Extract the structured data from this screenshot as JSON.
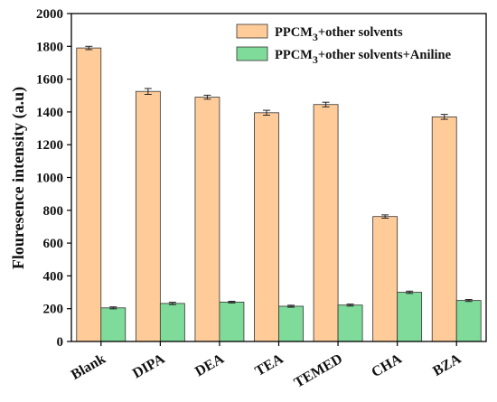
{
  "chart_data": {
    "type": "bar",
    "categories": [
      "Blank",
      "DIPA",
      "DEA",
      "TEA",
      "TEMED",
      "CHA",
      "BZA"
    ],
    "series": [
      {
        "name": "PPCM3+other solvents",
        "name_parts": {
          "pre": "PPCM",
          "sub": "3",
          "post": "+other solvents"
        },
        "color": "#FFCC99",
        "values": [
          1790,
          1525,
          1490,
          1395,
          1445,
          762,
          1370
        ],
        "errors": [
          10,
          18,
          12,
          15,
          14,
          10,
          15
        ]
      },
      {
        "name": "PPCM3+other solvents+Aniline",
        "name_parts": {
          "pre": "PPCM",
          "sub": "3",
          "post": "+other solvents+Aniline"
        },
        "color": "#7FDB9A",
        "values": [
          205,
          232,
          240,
          215,
          222,
          300,
          250
        ],
        "errors": [
          6,
          7,
          5,
          6,
          6,
          7,
          6
        ]
      }
    ],
    "xlabel": "",
    "ylabel": "Flouresence intensity (a.u)",
    "ylim": [
      0,
      2000
    ],
    "yticks": [
      0,
      200,
      400,
      600,
      800,
      1000,
      1200,
      1400,
      1600,
      1800,
      2000
    ],
    "grid": false,
    "legend_position": "top-right"
  }
}
